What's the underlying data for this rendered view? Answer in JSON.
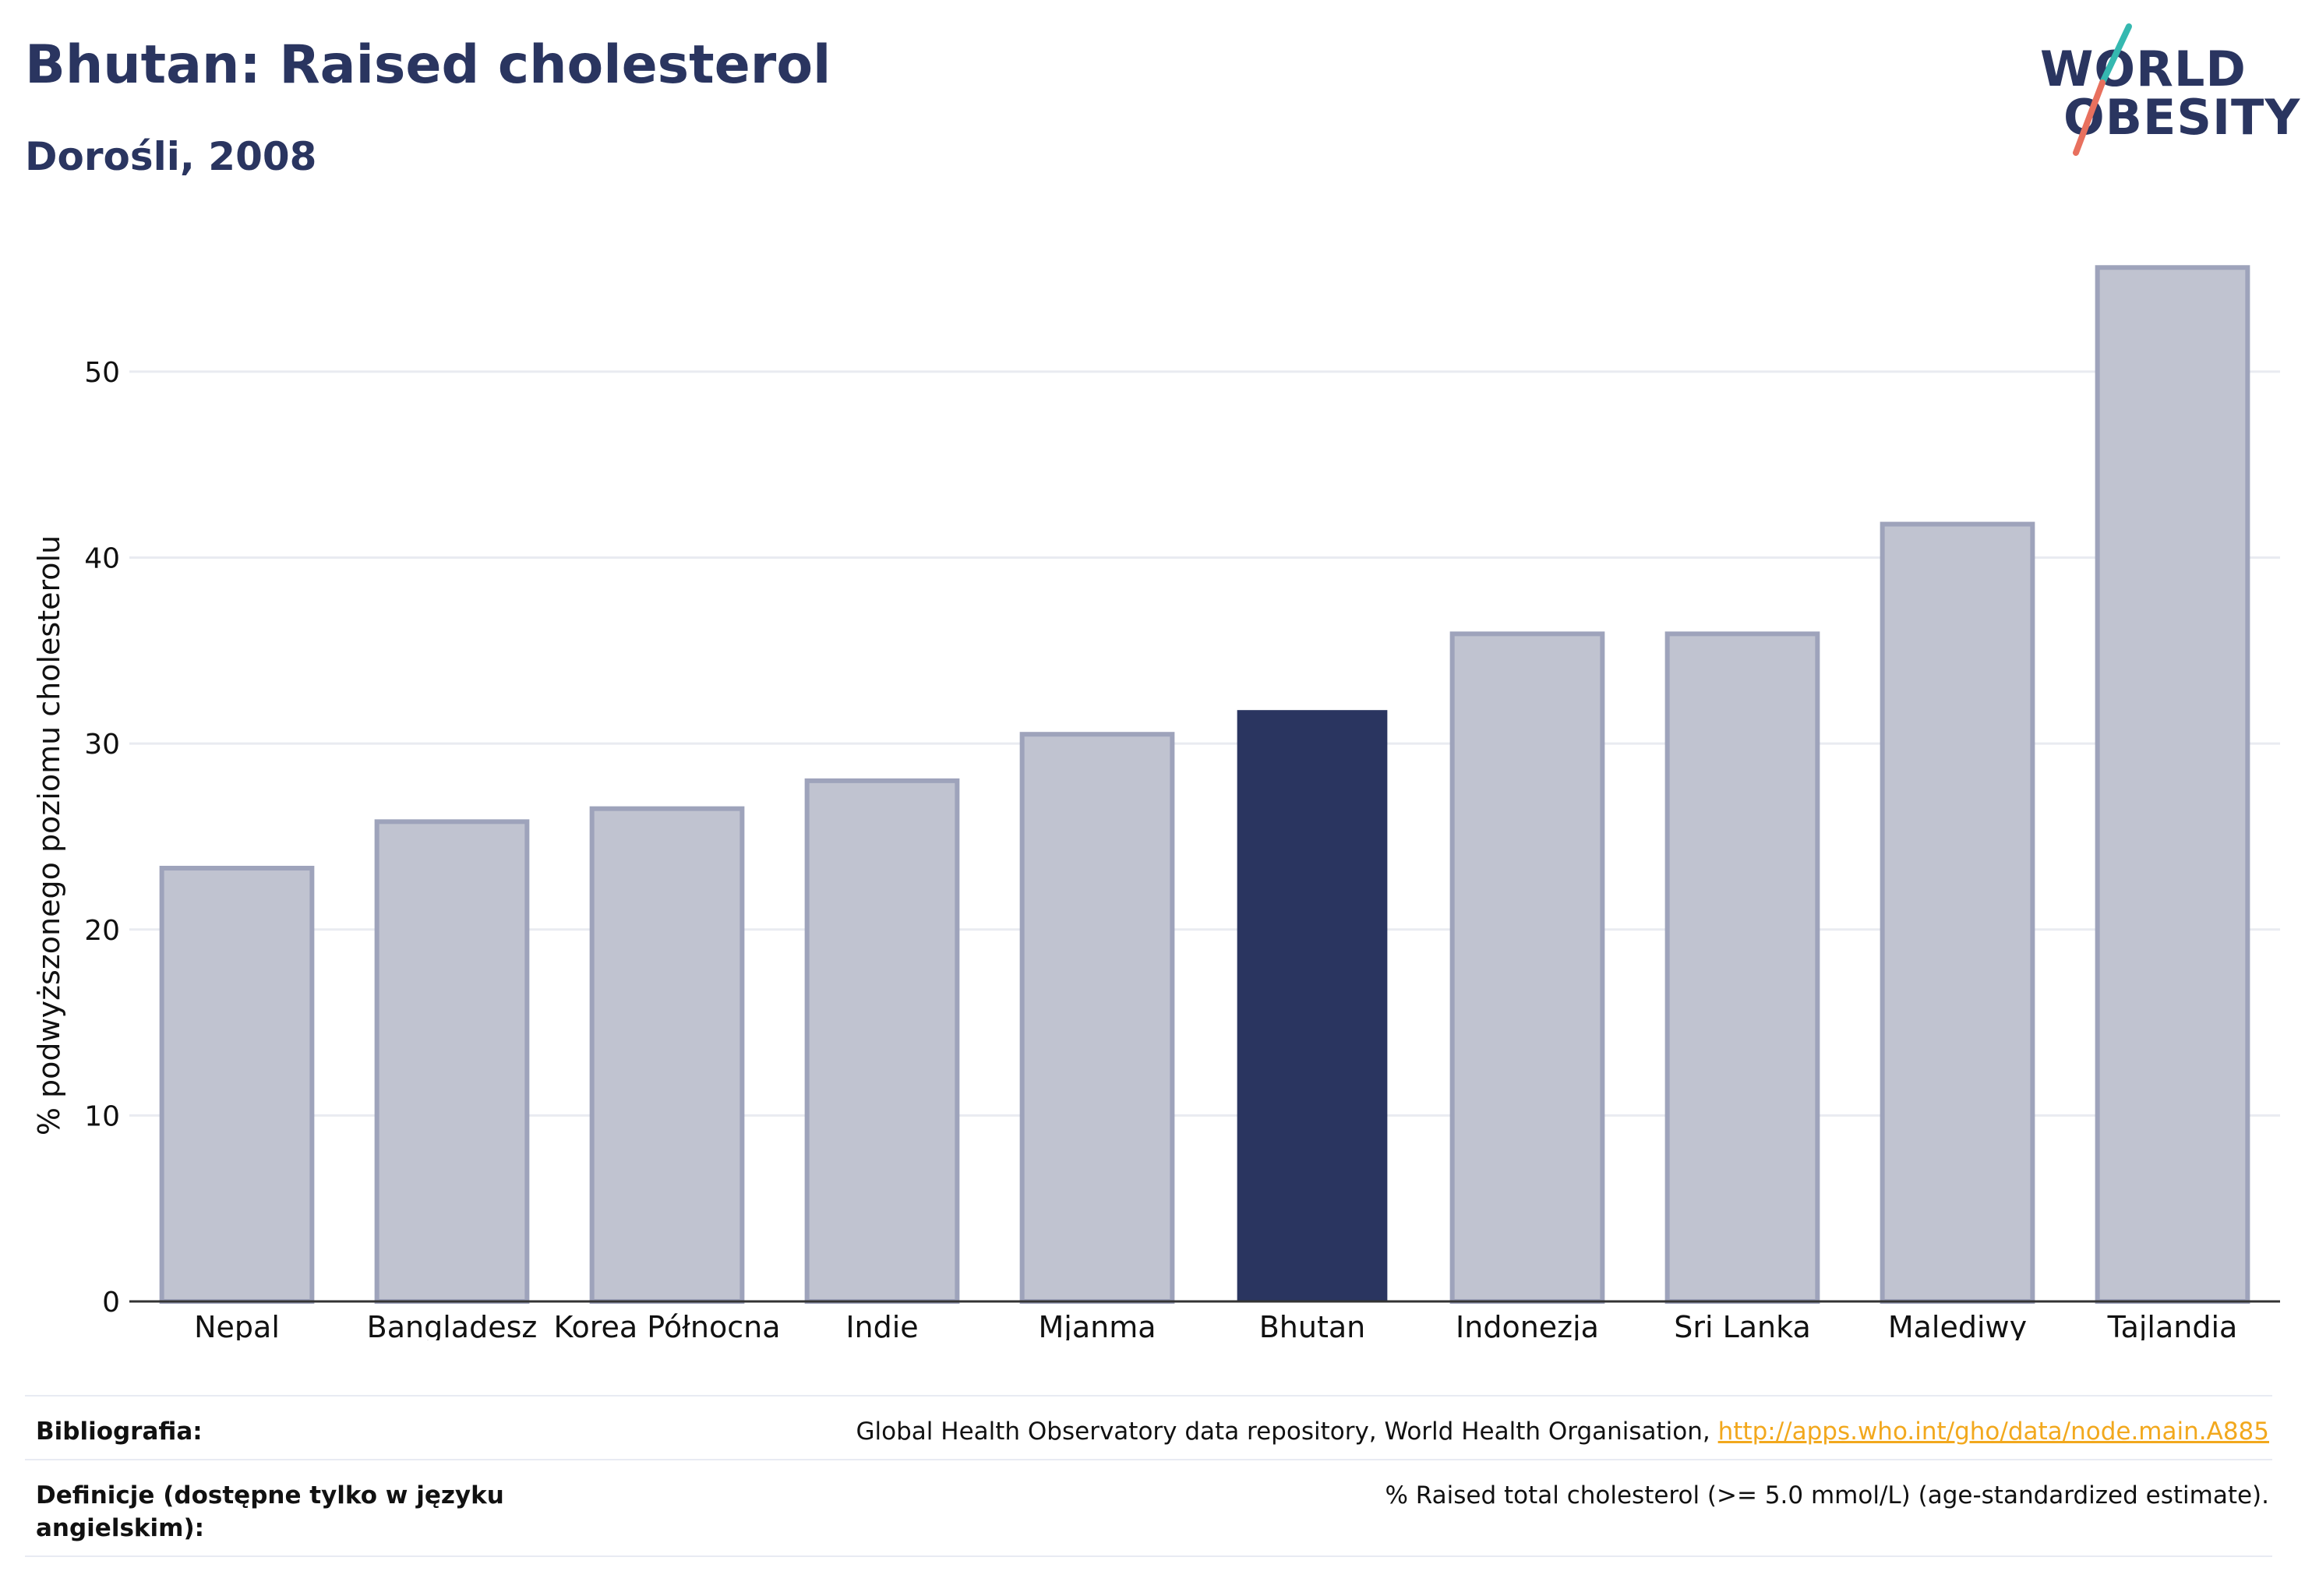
{
  "header": {
    "title": "Bhutan: Raised cholesterol",
    "subtitle": "Dorośli, 2008"
  },
  "logo": {
    "line1": "WORLD",
    "line2": "OBESITY",
    "colors": {
      "text": "#2a3560",
      "slash_top": "#35b8b0",
      "slash_bottom": "#e8705e"
    }
  },
  "chart_data": {
    "type": "bar",
    "title": "Bhutan: Raised cholesterol",
    "subtitle": "Dorośli, 2008",
    "xlabel": "",
    "ylabel": "% podwyższonego poziomu cholesterolu",
    "categories": [
      "Nepal",
      "Bangladesz",
      "Korea Północna",
      "Indie",
      "Mjanma",
      "Bhutan",
      "Indonezja",
      "Sri Lanka",
      "Malediwy",
      "Tajlandia"
    ],
    "values": [
      23.3,
      25.8,
      26.5,
      28.0,
      30.5,
      31.8,
      35.9,
      35.9,
      41.8,
      55.6
    ],
    "highlight": "Bhutan",
    "ylim": [
      0,
      58
    ],
    "yticks": [
      0,
      10,
      20,
      30,
      40,
      50
    ],
    "grid": true,
    "legend": "none",
    "colors": {
      "bar": "#c0c3d0",
      "bar_border": "#9ea3bb",
      "highlight": "#2a3560",
      "grid": "#e9ebf1",
      "axis": "#333333"
    }
  },
  "footer": {
    "bibliography_label": "Bibliografia:",
    "bibliography_text": "Global Health Observatory data repository, World Health Organisation, ",
    "bibliography_link": "http://apps.who.int/gho/data/node.main.A885",
    "definitions_label": "Definicje (dostępne tylko w języku angielskim):",
    "definitions_text": "% Raised total cholesterol (>= 5.0 mmol/L) (age-standardized estimate)."
  }
}
